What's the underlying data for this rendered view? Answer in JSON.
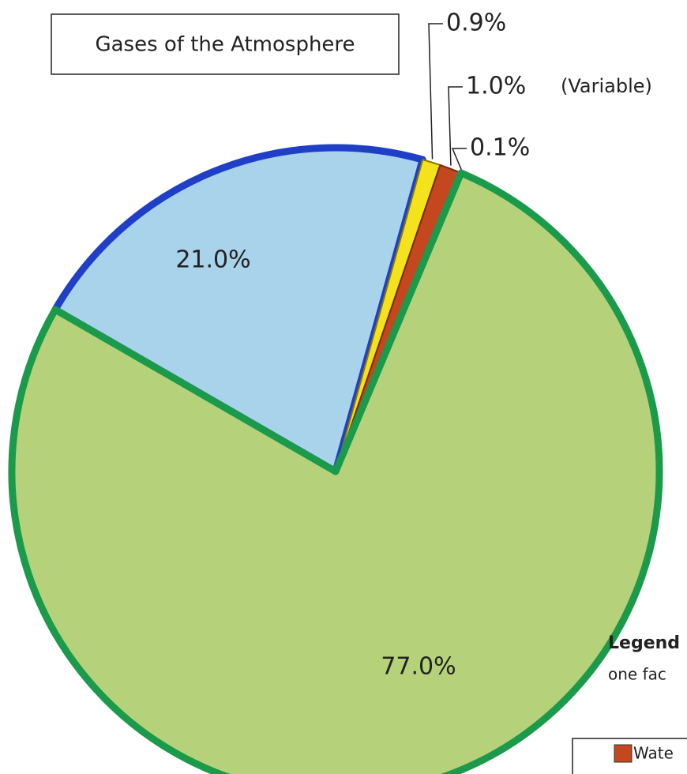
{
  "chart_data": {
    "type": "pie",
    "title": "Gases of the Atmosphere",
    "values": [
      21.0,
      0.9,
      1.0,
      0.1,
      77.0
    ],
    "value_labels": [
      "21.0%",
      "0.9%",
      "1.0%",
      "0.1%",
      "77.0%"
    ],
    "colors": [
      "#a9d3ea",
      "#f3e21c",
      "#c4471f",
      "#555555",
      "#b5d27a"
    ],
    "annotation": "(Variable)",
    "legend": {
      "title": "Legend",
      "text": "one fac",
      "entries": [
        "Wate"
      ]
    }
  }
}
